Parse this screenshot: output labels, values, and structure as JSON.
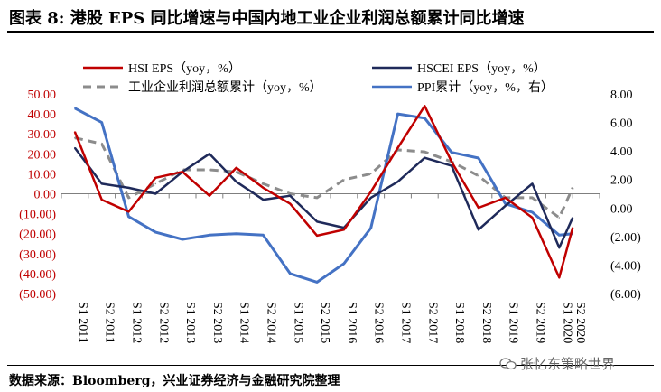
{
  "title": "图表 8:  港股 EPS 同比增速与中国内地工业企业利润总额累计同比增速",
  "source": "数据来源：Bloomberg，兴业证券经济与金融研究院整理",
  "watermark": "张忆东策略世界",
  "colors": {
    "hsi": "#C00000",
    "hscei": "#1F2A5A",
    "profit": "#8C8C8C",
    "ppi": "#4472C4",
    "left_axis_text": "#C00000"
  },
  "chart_data": {
    "type": "line",
    "categories": [
      "S1 2011",
      "S2 2011",
      "S1 2012",
      "S2 2012",
      "S1 2013",
      "S2 2013",
      "S1 2014",
      "S2 2014",
      "S1 2015",
      "S2 2015",
      "S1 2016",
      "S2 2016",
      "S1 2017",
      "S2 2017",
      "S1 2018",
      "S2 2018",
      "S1 2019",
      "S2 2019",
      "S1 2020",
      "S2 2020"
    ],
    "left_axis": {
      "ylim": [
        -50,
        50
      ],
      "ticks": [
        50,
        40,
        30,
        20,
        10,
        0,
        -10,
        -20,
        -30,
        -40,
        -50
      ],
      "tick_labels": [
        "50.00",
        "40.00",
        "30.00",
        "20.00",
        "10.00",
        "0.00",
        "(10.00)",
        "(20.00)",
        "(30.00)",
        "(40.00)",
        "(50.00)"
      ]
    },
    "right_axis": {
      "ylim": [
        -6,
        8
      ],
      "ticks": [
        8,
        6,
        4,
        2,
        0,
        -2,
        -4,
        -6
      ],
      "tick_labels": [
        "8.00",
        "6.00",
        "4.00",
        "2.00",
        "0.00",
        "(2.00)",
        "(4.00)",
        "(6.00)"
      ]
    },
    "x_positions": [
      0.5,
      1.5,
      2.5,
      3.5,
      4.5,
      5.5,
      6.5,
      7.5,
      8.5,
      9.5,
      10.5,
      11.5,
      12.5,
      13.5,
      14.5,
      15.5,
      16.5,
      17.5,
      18.5,
      19.0
    ],
    "series": [
      {
        "key": "hsi",
        "name": "HSI EPS（yoy，%）",
        "axis": "left",
        "style": "solid",
        "values": [
          31,
          -3,
          -9,
          8,
          11,
          -1,
          13,
          3,
          -5,
          -21,
          -18,
          1,
          23,
          44,
          16,
          -7,
          -2,
          -12,
          -42,
          -17
        ]
      },
      {
        "key": "hscei",
        "name": "HSCEI EPS（yoy，%）",
        "axis": "left",
        "style": "solid",
        "values": [
          23,
          5,
          3,
          0,
          11,
          20,
          6,
          -3,
          -1,
          -14,
          -17,
          -2,
          6,
          18,
          14,
          -18,
          -6,
          5,
          -27,
          -12
        ]
      },
      {
        "key": "profit",
        "name": "工业企业利润总额累计（yoy，%）",
        "axis": "left",
        "style": "dashed",
        "values": [
          28,
          25,
          -2,
          5,
          12,
          12,
          11,
          5,
          0,
          -2,
          7,
          10,
          22,
          21,
          16,
          9,
          -2,
          -2,
          -12,
          3
        ]
      },
      {
        "key": "ppi",
        "name": "PPI累计（yoy，%，右）",
        "axis": "right",
        "style": "solid",
        "values": [
          7.0,
          6.0,
          -0.6,
          -1.7,
          -2.2,
          -1.9,
          -1.8,
          -1.9,
          -4.6,
          -5.2,
          -3.9,
          -1.4,
          6.6,
          6.3,
          3.9,
          3.5,
          0.3,
          -0.3,
          -1.9,
          -1.8
        ]
      }
    ]
  }
}
